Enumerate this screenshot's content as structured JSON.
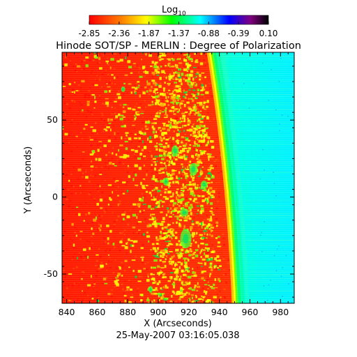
{
  "chart_data": {
    "type": "heatmap",
    "title": "Hinode SOT/SP - MERLIN : Degree of Polarization",
    "xlabel": "X (Arcseconds)",
    "ylabel": "Y (Arcseconds)",
    "timestamp": "25-May-2007 03:16:05.038",
    "xlim": [
      837,
      989
    ],
    "ylim": [
      -69,
      94
    ],
    "x_ticks": [
      840,
      860,
      880,
      900,
      920,
      940,
      960,
      980
    ],
    "y_ticks": [
      -50,
      0,
      50
    ],
    "colorbar": {
      "title_base": "Log",
      "title_sub": "10",
      "ticks": [
        "-2.85",
        "-2.36",
        "-1.87",
        "-1.37",
        "-0.88",
        "-0.39",
        "0.10"
      ],
      "range": [
        -2.85,
        0.1
      ],
      "colors": [
        "#ff0000",
        "#ff8000",
        "#ffff00",
        "#00ff00",
        "#00ffff",
        "#0000ff",
        "#800080",
        "#000000"
      ]
    },
    "limb_x": 947,
    "disk_value_log": -2.85,
    "offdisk_value_log": -0.95,
    "plage_value_log": -1.9,
    "strong_plage_value_log": -1.5
  }
}
